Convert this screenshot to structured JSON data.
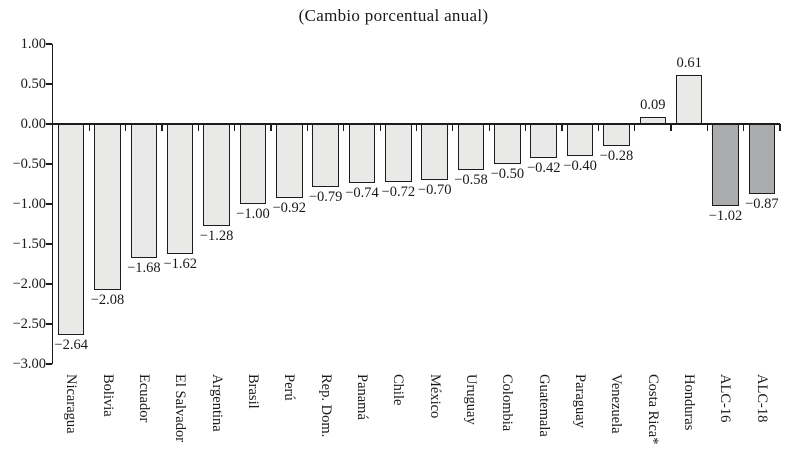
{
  "chart_data": {
    "type": "bar",
    "title": "(Cambio porcentual anual)",
    "categories": [
      "Nicaragua",
      "Bolivia",
      "Ecuador",
      "El Salvador",
      "Argentina",
      "Brasil",
      "Perú",
      "Rep. Dom.",
      "Panamá",
      "Chile",
      "México",
      "Uruguay",
      "Colombia",
      "Guatemala",
      "Paraguay",
      "Venezuela",
      "Costa Rica*",
      "Honduras",
      "ALC-16",
      "ALC-18"
    ],
    "values": [
      -2.64,
      -2.08,
      -1.68,
      -1.62,
      -1.28,
      -1.0,
      -0.92,
      -0.79,
      -0.74,
      -0.72,
      -0.7,
      -0.58,
      -0.5,
      -0.42,
      -0.4,
      -0.28,
      0.09,
      0.61,
      -1.02,
      -0.87
    ],
    "value_labels": [
      "−2.64",
      "−2.08",
      "−1.68",
      "−1.62",
      "−1.28",
      "−1.00",
      "−0.92",
      "−0.79",
      "−0.74",
      "−0.72",
      "−0.70",
      "−0.58",
      "−0.50",
      "−0.42",
      "−0.40",
      "−0.28",
      "0.09",
      "0.61",
      "−1.02",
      "−0.87"
    ],
    "highlight_indices": [
      18,
      19
    ],
    "ylim": [
      -3.0,
      1.0
    ],
    "ytick_step": 0.5,
    "ytick_labels": [
      "1.00",
      "0.50",
      "0.00",
      "−0.50",
      "−1.00",
      "−1.50",
      "−2.00",
      "−2.50",
      "−3.00"
    ],
    "xlabel": "",
    "ylabel": "",
    "grid": false,
    "legend": null,
    "colors": {
      "bar_light": "#e9e9e7",
      "bar_dark": "#a9abad",
      "axis": "#1c1c1c",
      "text": "#1a1a1a"
    }
  }
}
